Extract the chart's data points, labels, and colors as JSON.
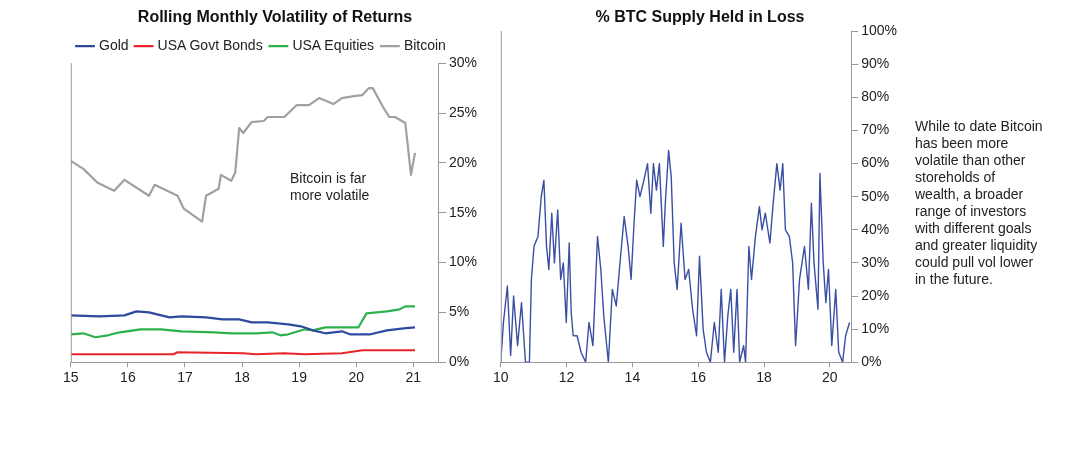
{
  "chart_data": [
    {
      "type": "line",
      "title": "Rolling Monthly Volatility of Returns",
      "legend": "top",
      "marker": "none",
      "line_style": "solid",
      "grid": false,
      "xlim": [
        15,
        21.45
      ],
      "xticks": [
        15,
        16,
        17,
        18,
        19,
        20,
        21
      ],
      "ylim": [
        0,
        30
      ],
      "yticks": [
        {
          "value": 0,
          "label": "0%"
        },
        {
          "value": 5,
          "label": "5%"
        },
        {
          "value": 10,
          "label": "10%"
        },
        {
          "value": 15,
          "label": "15%"
        },
        {
          "value": 20,
          "label": "20%"
        },
        {
          "value": 25,
          "label": "25%"
        },
        {
          "value": 30,
          "label": "30%"
        }
      ],
      "annotations": [
        "Bitcoin is far more volatile"
      ],
      "series": [
        {
          "name": "Gold",
          "color": "#2e4a9e",
          "x": [
            15.0,
            15.5,
            15.94,
            16.15,
            16.37,
            16.73,
            16.94,
            17.37,
            17.66,
            17.95,
            18.17,
            18.45,
            18.81,
            19.03,
            19.24,
            19.46,
            19.75,
            19.89,
            20.25,
            20.54,
            20.83,
            21.03
          ],
          "values": [
            4.7,
            4.6,
            4.7,
            5.1,
            5.0,
            4.5,
            4.6,
            4.5,
            4.3,
            4.3,
            4.0,
            4.0,
            3.8,
            3.6,
            3.2,
            2.9,
            3.1,
            2.8,
            2.8,
            3.2,
            3.4,
            3.5
          ]
        },
        {
          "name": "USA Govt Bonds",
          "color": "#e8262a",
          "x": [
            15.0,
            16.8,
            16.87,
            18.02,
            18.24,
            18.74,
            19.1,
            19.75,
            20.11,
            21.03
          ],
          "values": [
            0.8,
            0.8,
            1.0,
            0.9,
            0.8,
            0.9,
            0.8,
            0.9,
            1.2,
            1.2
          ]
        },
        {
          "name": "USA Equities",
          "color": "#2bb24c",
          "x": [
            15.0,
            15.22,
            15.43,
            15.65,
            15.86,
            16.22,
            16.58,
            16.94,
            17.52,
            17.81,
            18.24,
            18.53,
            18.67,
            18.81,
            19.1,
            19.24,
            19.46,
            20.04,
            20.18,
            20.54,
            20.76,
            20.86,
            21.03
          ],
          "values": [
            2.8,
            2.9,
            2.5,
            2.7,
            3.0,
            3.3,
            3.3,
            3.1,
            3.0,
            2.9,
            2.9,
            3.0,
            2.7,
            2.8,
            3.3,
            3.2,
            3.5,
            3.5,
            4.9,
            5.1,
            5.3,
            5.6,
            5.6
          ]
        },
        {
          "name": "Bitcoin",
          "color": "#a0a0a0",
          "x": [
            15.0,
            15.22,
            15.47,
            15.76,
            15.94,
            16.37,
            16.47,
            16.87,
            16.98,
            17.3,
            17.37,
            17.59,
            17.63,
            17.81,
            17.88,
            17.95,
            18.02,
            18.17,
            18.38,
            18.45,
            18.74,
            18.96,
            19.17,
            19.35,
            19.6,
            19.75,
            19.96,
            20.11,
            20.22,
            20.29,
            20.47,
            20.58,
            20.68,
            20.86,
            20.96,
            21.03
          ],
          "values": [
            20.2,
            19.4,
            18.0,
            17.2,
            18.3,
            16.7,
            17.8,
            16.7,
            15.4,
            14.1,
            16.7,
            17.4,
            18.8,
            18.2,
            19.0,
            23.5,
            23.0,
            24.1,
            24.2,
            24.6,
            24.6,
            25.8,
            25.8,
            26.5,
            25.9,
            26.5,
            26.7,
            26.8,
            27.5,
            27.5,
            25.6,
            24.6,
            24.6,
            24.0,
            18.8,
            21.0
          ]
        }
      ]
    },
    {
      "type": "line",
      "title": "% BTC Supply Held in Loss",
      "legend": false,
      "marker": "none",
      "line_style": "solid",
      "grid": false,
      "xlim": [
        10,
        20.65
      ],
      "xticks": [
        10,
        12,
        14,
        16,
        18,
        20
      ],
      "ylim": [
        0,
        100
      ],
      "yticks": [
        {
          "value": 0,
          "label": "0%"
        },
        {
          "value": 10,
          "label": "10%"
        },
        {
          "value": 20,
          "label": "20%"
        },
        {
          "value": 30,
          "label": "30%"
        },
        {
          "value": 40,
          "label": "40%"
        },
        {
          "value": 50,
          "label": "50%"
        },
        {
          "value": 60,
          "label": "60%"
        },
        {
          "value": 70,
          "label": "70%"
        },
        {
          "value": 80,
          "label": "80%"
        },
        {
          "value": 90,
          "label": "90%"
        },
        {
          "value": 100,
          "label": "100%"
        }
      ],
      "annotations": [
        "While to date Bitcoin has been more volatile than other storeholds of wealth, a broader range of investors with different goals and greater liquidity could pull vol lower in  the future."
      ],
      "series": [
        {
          "color": "#3a4fa3",
          "x": [
            10.0,
            10.08,
            10.2,
            10.3,
            10.39,
            10.51,
            10.63,
            10.75,
            10.87,
            10.93,
            11.01,
            11.13,
            11.23,
            11.31,
            11.39,
            11.46,
            11.55,
            11.63,
            11.73,
            11.82,
            11.9,
            11.99,
            12.08,
            12.14,
            12.2,
            12.32,
            12.44,
            12.58,
            12.68,
            12.8,
            12.94,
            13.04,
            13.13,
            13.27,
            13.39,
            13.51,
            13.65,
            13.75,
            13.87,
            13.96,
            14.05,
            14.13,
            14.23,
            14.35,
            14.46,
            14.56,
            14.64,
            14.73,
            14.82,
            14.94,
            15.0,
            15.1,
            15.18,
            15.27,
            15.36,
            15.48,
            15.6,
            15.71,
            15.83,
            15.95,
            16.04,
            16.15,
            16.25,
            16.37,
            16.49,
            16.61,
            16.7,
            16.8,
            16.9,
            16.99,
            17.08,
            17.18,
            17.26,
            17.38,
            17.44,
            17.54,
            17.62,
            17.74,
            17.86,
            17.94,
            18.04,
            18.18,
            18.27,
            18.39,
            18.49,
            18.57,
            18.65,
            18.77,
            18.87,
            18.96,
            19.08,
            19.23,
            19.35,
            19.44,
            19.52,
            19.64,
            19.7,
            19.8,
            19.88,
            19.96,
            20.06,
            20.18,
            20.27,
            20.39,
            20.48,
            20.6
          ],
          "values": [
            0,
            12,
            23,
            2,
            20,
            5,
            18,
            0,
            0,
            25,
            35,
            38,
            50,
            55,
            35,
            28,
            45,
            30,
            46,
            25,
            30,
            12,
            36,
            15,
            8,
            8,
            3,
            0,
            12,
            5,
            38,
            28,
            14,
            0,
            22,
            17,
            33,
            44,
            35,
            25,
            42,
            55,
            50,
            55,
            60,
            45,
            60,
            52,
            60,
            35,
            48,
            64,
            56,
            30,
            22,
            42,
            25,
            28,
            16,
            8,
            32,
            10,
            3,
            0,
            12,
            3,
            22,
            0,
            14,
            22,
            3,
            22,
            0,
            5,
            0,
            35,
            25,
            38,
            47,
            40,
            45,
            36,
            47,
            60,
            52,
            60,
            40,
            38,
            30,
            5,
            25,
            35,
            22,
            48,
            30,
            16,
            57,
            30,
            18,
            28,
            5,
            22,
            3,
            0,
            8,
            12
          ]
        }
      ]
    }
  ]
}
